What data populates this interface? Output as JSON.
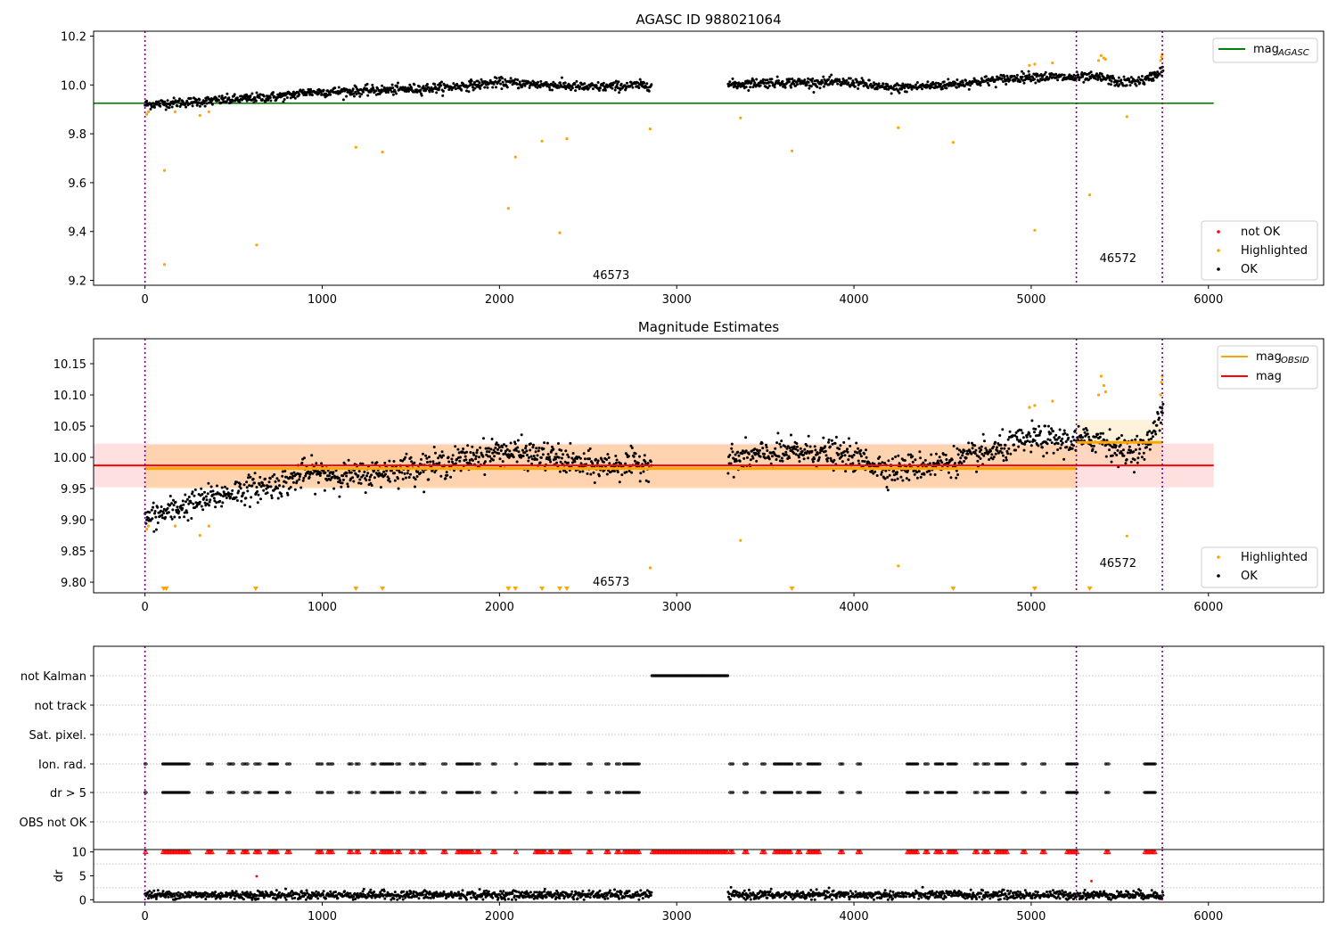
{
  "chart_data": [
    {
      "id": "top",
      "type": "scatter",
      "title": "AGASC ID 988021064",
      "xlabel": "",
      "ylabel": "",
      "xlim": [
        -290,
        6650
      ],
      "ylim": [
        9.18,
        10.22
      ],
      "xticks": [
        0,
        1000,
        2000,
        3000,
        4000,
        5000,
        6000
      ],
      "yticks": [
        9.2,
        9.4,
        9.6,
        9.8,
        10.0,
        10.2
      ],
      "ytick_labels": [
        "9.2",
        "9.4",
        "9.6",
        "9.8",
        "10.0",
        "10.2"
      ],
      "hlines": [
        {
          "y": 9.925,
          "x0": -290,
          "x1": 6030,
          "color": "#008000"
        }
      ],
      "vlines": [
        0,
        5255,
        5740
      ],
      "annotations": [
        {
          "text": "46573",
          "x": 2630,
          "y": 9.22
        },
        {
          "text": "46572",
          "x": 5490,
          "y": 9.29
        }
      ],
      "legend_lines": {
        "position": "top-right",
        "items": [
          {
            "label": "mag",
            "sub": "AGASC",
            "color": "#008000"
          }
        ]
      },
      "legend_points": {
        "position": "bottom-right",
        "items": [
          {
            "label": "not OK",
            "color": "#ff0000"
          },
          {
            "label": "Highlighted",
            "color": "#ffa500"
          },
          {
            "label": "OK",
            "color": "#000000"
          }
        ]
      },
      "series": [
        {
          "name": "OK",
          "color": "#000000",
          "trend": [
            [
              0,
              9.92
            ],
            [
              500,
              9.94
            ],
            [
              800,
              9.955
            ],
            [
              900,
              9.97
            ],
            [
              1200,
              9.975
            ],
            [
              1400,
              9.98
            ],
            [
              1700,
              9.99
            ],
            [
              2000,
              10.01
            ],
            [
              2300,
              10.0
            ],
            [
              2500,
              9.99
            ],
            [
              2850,
              10.0
            ],
            [
              3290,
              10.0
            ],
            [
              3500,
              10.01
            ],
            [
              3800,
              10.01
            ],
            [
              4000,
              10.01
            ],
            [
              4200,
              9.985
            ],
            [
              4500,
              10.0
            ],
            [
              4800,
              10.02
            ],
            [
              5000,
              10.035
            ],
            [
              5200,
              10.03
            ],
            [
              5400,
              10.03
            ],
            [
              5500,
              10.01
            ],
            [
              5650,
              10.02
            ],
            [
              5740,
              10.06
            ]
          ],
          "segments": [
            [
              0,
              2860
            ],
            [
              3290,
              5745
            ]
          ],
          "noise": 0.018
        },
        {
          "name": "Highlighted",
          "color": "#ffa500",
          "points": [
            [
              10,
              9.88
            ],
            [
              20,
              9.89
            ],
            [
              110,
              9.65
            ],
            [
              110,
              9.265
            ],
            [
              170,
              9.89
            ],
            [
              310,
              9.875
            ],
            [
              360,
              9.89
            ],
            [
              630,
              9.345
            ],
            [
              1190,
              9.745
            ],
            [
              1340,
              9.725
            ],
            [
              2050,
              9.495
            ],
            [
              2090,
              9.705
            ],
            [
              2240,
              9.77
            ],
            [
              2340,
              9.395
            ],
            [
              2380,
              9.78
            ],
            [
              2850,
              9.82
            ],
            [
              3360,
              9.865
            ],
            [
              3650,
              9.73
            ],
            [
              4250,
              9.825
            ],
            [
              4560,
              9.765
            ],
            [
              4990,
              10.08
            ],
            [
              5020,
              9.405
            ],
            [
              5020,
              10.085
            ],
            [
              5120,
              10.09
            ],
            [
              5330,
              9.55
            ],
            [
              5540,
              9.87
            ],
            [
              5380,
              10.1
            ],
            [
              5395,
              10.12
            ],
            [
              5410,
              10.11
            ],
            [
              5420,
              10.105
            ],
            [
              5730,
              10.1
            ],
            [
              5735,
              10.115
            ],
            [
              5740,
              10.125
            ]
          ]
        }
      ]
    },
    {
      "id": "middle",
      "type": "scatter",
      "title": "Magnitude Estimates",
      "xlabel": "",
      "ylabel": "",
      "xlim": [
        -290,
        6650
      ],
      "ylim": [
        9.783,
        10.19
      ],
      "xticks": [
        0,
        1000,
        2000,
        3000,
        4000,
        5000,
        6000
      ],
      "yticks": [
        9.8,
        9.85,
        9.9,
        9.95,
        10.0,
        10.05,
        10.1,
        10.15
      ],
      "ytick_labels": [
        "9.80",
        "9.85",
        "9.90",
        "9.95",
        "10.00",
        "10.05",
        "10.10",
        "10.15"
      ],
      "bands": [
        {
          "x0": -290,
          "x1": 6030,
          "y0": 9.952,
          "y1": 10.022,
          "color": "#ff0000",
          "opacity": 0.12
        },
        {
          "x0": 0,
          "x1": 5255,
          "y0": 9.95,
          "y1": 10.02,
          "color": "#ffa500",
          "opacity": 0.22
        },
        {
          "x0": 5255,
          "x1": 5740,
          "y0": 9.99,
          "y1": 10.06,
          "color": "#ffa500",
          "opacity": 0.14
        }
      ],
      "hlines": [
        {
          "y": 9.987,
          "x0": -290,
          "x1": 6030,
          "color": "#ff0000",
          "width": 2
        },
        {
          "y": 9.982,
          "x0": 0,
          "x1": 5255,
          "color": "#ffa500",
          "width": 3
        },
        {
          "y": 10.024,
          "x0": 5255,
          "x1": 5740,
          "color": "#ffa500",
          "width": 3
        }
      ],
      "vlines": [
        0,
        5255,
        5740
      ],
      "annotations": [
        {
          "text": "46573",
          "x": 2630,
          "y": 9.8
        },
        {
          "text": "46572",
          "x": 5490,
          "y": 9.83
        }
      ],
      "legend_lines": {
        "position": "top-right",
        "items": [
          {
            "label": "mag",
            "sub": "OBSID",
            "color": "#ffa500"
          },
          {
            "label": "mag",
            "sub": "",
            "color": "#ff0000"
          }
        ]
      },
      "legend_points": {
        "position": "bottom-right",
        "items": [
          {
            "label": "Highlighted",
            "color": "#ffa500"
          },
          {
            "label": "OK",
            "color": "#000000"
          }
        ]
      },
      "series": [
        {
          "name": "OK",
          "color": "#000000",
          "trend": [
            [
              0,
              9.9
            ],
            [
              200,
              9.92
            ],
            [
              500,
              9.945
            ],
            [
              800,
              9.96
            ],
            [
              900,
              9.975
            ],
            [
              1200,
              9.97
            ],
            [
              1400,
              9.98
            ],
            [
              1700,
              9.99
            ],
            [
              2000,
              10.01
            ],
            [
              2300,
              10.0
            ],
            [
              2500,
              9.985
            ],
            [
              2850,
              9.99
            ],
            [
              3290,
              9.995
            ],
            [
              3500,
              10.005
            ],
            [
              3800,
              10.01
            ],
            [
              4000,
              10.0
            ],
            [
              4200,
              9.98
            ],
            [
              4500,
              9.99
            ],
            [
              4800,
              10.01
            ],
            [
              5000,
              10.03
            ],
            [
              5200,
              10.025
            ],
            [
              5400,
              10.03
            ],
            [
              5500,
              10.01
            ],
            [
              5650,
              10.015
            ],
            [
              5740,
              10.08
            ]
          ],
          "segments": [
            [
              0,
              2860
            ],
            [
              3290,
              5745
            ]
          ],
          "noise": 0.02
        },
        {
          "name": "Highlighted",
          "color": "#ffa500",
          "points": [
            [
              10,
              9.885
            ],
            [
              20,
              9.89
            ],
            [
              170,
              9.89
            ],
            [
              310,
              9.875
            ],
            [
              360,
              9.89
            ],
            [
              2850,
              9.823
            ],
            [
              3360,
              9.867
            ],
            [
              4250,
              9.826
            ],
            [
              4990,
              10.08
            ],
            [
              5020,
              10.083
            ],
            [
              5120,
              10.09
            ],
            [
              5540,
              9.874
            ],
            [
              5380,
              10.1
            ],
            [
              5395,
              10.13
            ],
            [
              5410,
              10.115
            ],
            [
              5420,
              10.105
            ],
            [
              5730,
              10.1
            ],
            [
              5735,
              10.12
            ],
            [
              5740,
              10.13
            ]
          ]
        },
        {
          "name": "Highlighted (below range)",
          "color": "#ffa500",
          "markers": "triangle-down",
          "x": [
            105,
            120,
            625,
            1190,
            1340,
            2050,
            2090,
            2240,
            2340,
            2380,
            3650,
            4560,
            5020,
            5330
          ]
        }
      ]
    },
    {
      "id": "flags",
      "type": "scatter",
      "xlim": [
        -290,
        6650
      ],
      "categories": [
        "not Kalman",
        "not track",
        "Sat. pixel.",
        "Ion. rad.",
        "dr > 5",
        "OBS not OK"
      ],
      "vlines": [
        0,
        5255,
        5740
      ],
      "flags": {
        "not Kalman": [
          [
            2860,
            3290
          ]
        ],
        "not track": [],
        "Sat. pixel.": [],
        "Ion. rad.": [
          [
            0,
            10
          ],
          [
            100,
            250
          ],
          [
            350,
            380
          ],
          [
            470,
            500
          ],
          [
            550,
            580
          ],
          [
            620,
            650
          ],
          [
            700,
            750
          ],
          [
            800,
            820
          ],
          [
            970,
            1000
          ],
          [
            1030,
            1060
          ],
          [
            1150,
            1170
          ],
          [
            1190,
            1210
          ],
          [
            1280,
            1300
          ],
          [
            1330,
            1400
          ],
          [
            1420,
            1440
          ],
          [
            1500,
            1520
          ],
          [
            1550,
            1580
          ],
          [
            1680,
            1700
          ],
          [
            1760,
            1850
          ],
          [
            1870,
            1890
          ],
          [
            1960,
            1980
          ],
          [
            2090,
            2100
          ],
          [
            2200,
            2260
          ],
          [
            2280,
            2300
          ],
          [
            2340,
            2400
          ],
          [
            2500,
            2520
          ],
          [
            2600,
            2620
          ],
          [
            2660,
            2680
          ],
          [
            2700,
            2790
          ],
          [
            3300,
            3320
          ],
          [
            3380,
            3400
          ],
          [
            3480,
            3500
          ],
          [
            3550,
            3650
          ],
          [
            3680,
            3700
          ],
          [
            3740,
            3810
          ],
          [
            3920,
            3940
          ],
          [
            4020,
            4040
          ],
          [
            4300,
            4360
          ],
          [
            4400,
            4420
          ],
          [
            4460,
            4500
          ],
          [
            4530,
            4580
          ],
          [
            4680,
            4700
          ],
          [
            4730,
            4760
          ],
          [
            4800,
            4870
          ],
          [
            4950,
            4970
          ],
          [
            5060,
            5080
          ],
          [
            5200,
            5260
          ],
          [
            5420,
            5440
          ],
          [
            5640,
            5700
          ]
        ],
        "dr > 5": [
          [
            0,
            10
          ],
          [
            100,
            250
          ],
          [
            350,
            380
          ],
          [
            470,
            500
          ],
          [
            550,
            580
          ],
          [
            620,
            650
          ],
          [
            700,
            750
          ],
          [
            800,
            820
          ],
          [
            970,
            1000
          ],
          [
            1030,
            1060
          ],
          [
            1150,
            1170
          ],
          [
            1190,
            1210
          ],
          [
            1280,
            1300
          ],
          [
            1330,
            1400
          ],
          [
            1420,
            1440
          ],
          [
            1500,
            1520
          ],
          [
            1550,
            1580
          ],
          [
            1680,
            1700
          ],
          [
            1760,
            1850
          ],
          [
            1870,
            1890
          ],
          [
            1960,
            1980
          ],
          [
            2090,
            2100
          ],
          [
            2200,
            2260
          ],
          [
            2280,
            2300
          ],
          [
            2340,
            2400
          ],
          [
            2500,
            2520
          ],
          [
            2600,
            2620
          ],
          [
            2660,
            2680
          ],
          [
            2700,
            2790
          ],
          [
            3300,
            3320
          ],
          [
            3380,
            3400
          ],
          [
            3480,
            3500
          ],
          [
            3550,
            3650
          ],
          [
            3680,
            3700
          ],
          [
            3740,
            3810
          ],
          [
            3920,
            3940
          ],
          [
            4020,
            4040
          ],
          [
            4300,
            4360
          ],
          [
            4400,
            4420
          ],
          [
            4460,
            4500
          ],
          [
            4530,
            4580
          ],
          [
            4680,
            4700
          ],
          [
            4730,
            4760
          ],
          [
            4800,
            4870
          ],
          [
            4950,
            4970
          ],
          [
            5060,
            5080
          ],
          [
            5200,
            5260
          ],
          [
            5420,
            5440
          ],
          [
            5640,
            5700
          ]
        ],
        "OBS not OK": []
      }
    },
    {
      "id": "dr",
      "type": "scatter",
      "xlabel": "",
      "ylabel": "dr",
      "xlim": [
        -290,
        6650
      ],
      "ylim": [
        -0.5,
        10.5
      ],
      "xticks": [
        0,
        1000,
        2000,
        3000,
        4000,
        5000,
        6000
      ],
      "yticks": [
        0,
        5,
        10
      ],
      "ytick_labels": [
        "0",
        "5",
        "10"
      ],
      "vlines": [
        0,
        5255,
        5740
      ],
      "series": [
        {
          "name": "dr",
          "color": "#000000",
          "segments": [
            [
              0,
              2860
            ],
            [
              3290,
              5745
            ]
          ],
          "level": 1.0
        },
        {
          "name": "dr > 5",
          "color": "#ff0000",
          "value": 10,
          "segments": [
            [
              2860,
              3290
            ]
          ],
          "outliers": [
            [
              630,
              4.9
            ],
            [
              5340,
              3.9
            ]
          ]
        }
      ]
    }
  ]
}
